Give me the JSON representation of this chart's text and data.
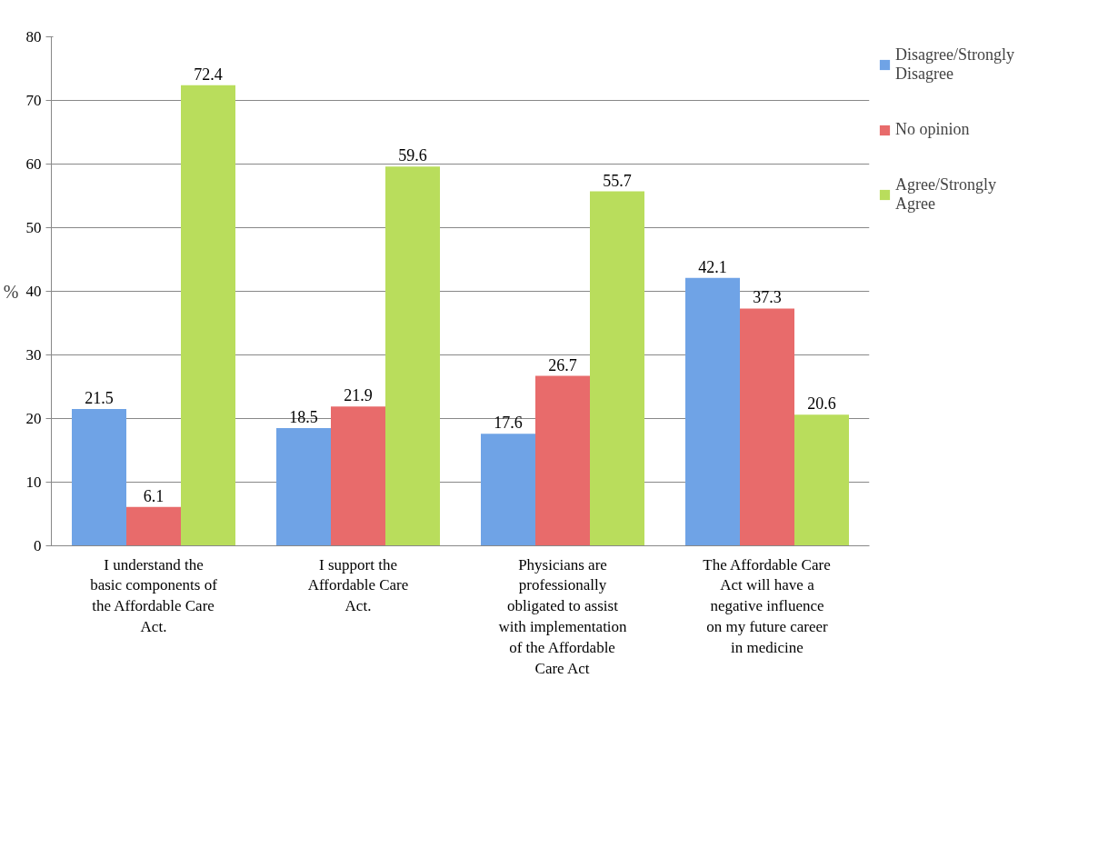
{
  "chart_data": {
    "type": "bar",
    "ylabel": "%",
    "categories": [
      "I understand the basic components of the Affordable Care Act.",
      "I support the Affordable Care Act.",
      "Physicians are professionally obligated to assist with implementation of the Affordable Care Act",
      "The Affordable Care Act will have a negative influence on my future career in medicine"
    ],
    "series": [
      {
        "name": "Disagree/Strongly Disagree",
        "color": "#6fa3e6",
        "values": [
          21.5,
          18.5,
          17.6,
          42.1
        ]
      },
      {
        "name": "No opinion",
        "color": "#e86b6b",
        "values": [
          6.1,
          21.9,
          26.7,
          37.3
        ]
      },
      {
        "name": "Agree/Strongly Agree",
        "color": "#b9dd5c",
        "values": [
          72.4,
          59.6,
          55.7,
          20.6
        ]
      }
    ],
    "ylim": [
      0,
      80
    ],
    "yticks": [
      0,
      10,
      20,
      30,
      40,
      50,
      60,
      70,
      80
    ],
    "grid": "y",
    "legend": "right",
    "data_labels": true
  }
}
